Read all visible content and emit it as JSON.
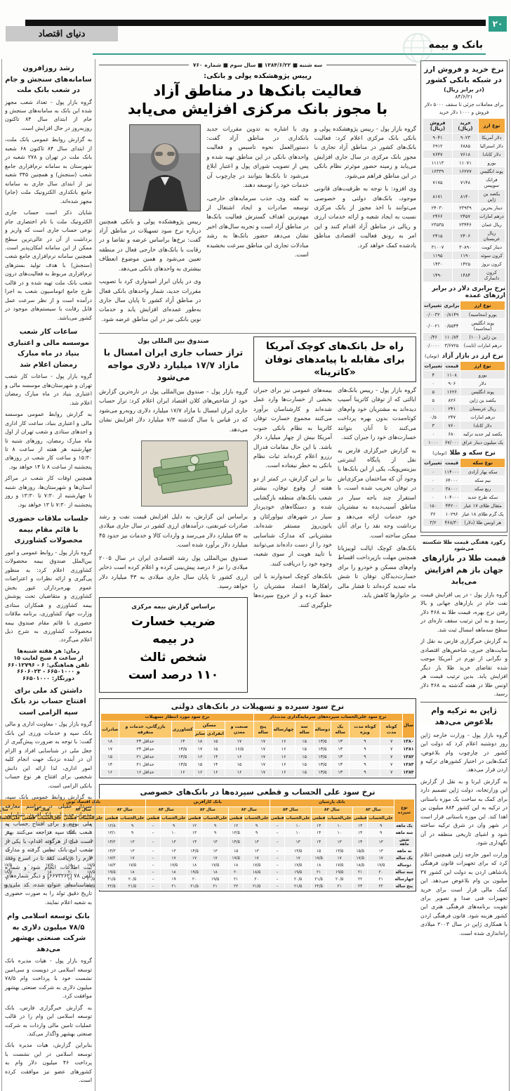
{
  "page": {
    "number": "۲۰",
    "section": "بانک و بیمه",
    "logo": "دنیای اقتصاد",
    "dateline": "سه شنبه ■ ۱۳۸۴/۶/۲۲ ■ سال سوم ■ شماره ۷۶۰"
  },
  "accent": {
    "teal": "#2f9e88",
    "orange": "#f3a83b",
    "light_orange": "#fbd389"
  },
  "lead_article": {
    "kicker": "رییس پژوهشکده پولی و بانکی:",
    "headline_line1": "فعالیت بانک‌ها در مناطق آزاد",
    "headline_line2": "با مجوز بانک مرکزی افزایش می‌یابد",
    "col1": [
      "گروه بازار پول - رییس پژوهشکده پولی و بانکی بانک مرکزی اعلام کرد: فعالیت بانک‌های کشور در مناطق آزاد تجاری با مجوز بانک مرکزی در سال جاری افزایش می‌یابد و زمینه حضور موثرتر نظام بانکی در این مناطق فراهم می‌شود.",
      "وی افزود: با توجه به ظرفیت‌های قانونی موجود، بانک‌های دولتی و خصوصی می‌توانند با اخذ مجوز از بانک مرکزی نسبت به ایجاد شعبه و ارائه خدمات ارزی و ریالی در مناطق آزاد اقدام کنند و این امر به رونق فعالیت اقتصادی مناطق یادشده کمک خواهد کرد."
    ],
    "col2": [
      "وی با اشاره به تدوین مقررات جدید بانکداری در مناطق آزاد گفت: دستورالعمل نحوه تاسیس و فعالیت واحدهای بانکی در این مناطق تهیه شده و پس از تصویب شورای پول و اعتبار ابلاغ می‌شود تا بانک‌ها بتوانند در چارچوب آن خدمات خود را توسعه دهند.",
      "به گفته وی، جذب سرمایه‌های خارجی، توسعه صادرات و ایجاد اشتغال از مهم‌ترین اهداف گسترش فعالیت بانک‌ها در مناطق آزاد است و تجربه سال‌های اخیر نشان می‌دهد حضور بانک‌ها به رشد مبادلات تجاری این مناطق سرعت بخشیده است."
    ],
    "col3": [
      "رییس پژوهشکده پولی و بانکی همچنین درباره نرخ سود تسهیلات در مناطق آزاد گفت: نرخ‌ها براساس عرضه و تقاضا و در رقابت با بانک‌های خارجی فعال در منطقه تعیین می‌شود و همین موضوع انعطاف بیشتری به واحدهای بانکی می‌دهد.",
      "وی در پایان ابراز امیدواری کرد با تصویب مقررات جدید، شمار واحدهای بانکی فعال در مناطق آزاد کشور تا پایان سال جاری به‌طور عمده‌ای افزایش یابد و خدمات نوین بانکی نیز در این مناطق عرضه شود."
    ]
  },
  "currency_box": {
    "title": "نرخ خرید و فروش ارز در شبکه بانکی کشور",
    "subtitle": "(در برابر ریال)",
    "date": "۸۴/۶/۲۱",
    "note": "برای معاملات جزئی تا سقف ۵۰۰۰ دلار فروش و ۱۰۰۰ دلار خرید",
    "bank_table": {
      "headers": [
        "نوع ارز",
        "خرید (ریال)",
        "فروش (ریال)"
      ],
      "rows": [
        [
          "دلار آمریکا",
          "۹۰۲۳",
          "۹۰۴۱"
        ],
        [
          "دلار استرالیا",
          "۶۸۸۵",
          "۶۹۱۲"
        ],
        [
          "دلار کانادا",
          "۷۶۱۸",
          "۷۶۴۷"
        ],
        [
          "یورو",
          "۱۱۰۷۱",
          "۱۱۱۱۳"
        ],
        [
          "پوند انگلیس",
          "۱۶۲۷۷",
          "۱۶۳۳۹"
        ],
        [
          "فرانک سوییس",
          "۷۱۴۸",
          "۷۱۷۵"
        ],
        [
          "یکصد ین ژاپن",
          "۸۱۴۰",
          "۸۱۷۱"
        ],
        [
          "دینار بحرین",
          "۲۳۹۳۹",
          "۲۴۰۳۰"
        ],
        [
          "درهم امارات",
          "۲۴۵۷",
          "۲۴۶۶"
        ],
        [
          "ریال عمان",
          "۲۳۴۴۶",
          "۲۳۵۳۵"
        ],
        [
          "ریال عربستان",
          "۲۴۰۶",
          "۲۴۱۵"
        ],
        [
          "دینار کویت",
          "۳۰۸۹۰",
          "۳۱۰۰۷"
        ],
        [
          "کرون سوئد",
          "۱۱۹۰",
          "۱۱۹۵"
        ],
        [
          "کرون نروژ",
          "۱۴۲۵",
          "۱۴۳۰"
        ],
        [
          "کرون دانمارک",
          "۱۴۸۴",
          "۱۴۹۰"
        ]
      ]
    },
    "parity_table": {
      "title": "نرخ برابری دلار در برابر ارزهای عمده",
      "headers": [
        "نوع ارز",
        "برابری",
        "تغییرات"
      ],
      "rows": [
        [
          "یورو (محاسبه)",
          "۰/۸۱۴۹",
          "۰/۰۰۳۲"
        ],
        [
          "پوند انگلیس (محاسبه)",
          "۰/۵۵۴۴",
          "۰/۰۰۲۱"
        ],
        [
          "ین ژاپن (۱۰۰)",
          "۱۱۰/۸۴",
          "۰/۴۶"
        ],
        [
          "درهم امارات (ثابت)",
          "۳/۶۷۲۵",
          "۰/۰۰۰۰"
        ]
      ]
    },
    "free_market_table": {
      "title": "نرخ ارز در بازار آزاد",
      "unit": "(تومان)",
      "headers": [
        "نوع ارز",
        "قیمت",
        "تغییرات"
      ],
      "rows": [
        [
          "یورو",
          "۱۱۰۸",
          "۴"
        ],
        [
          "دلار",
          "۹۰۶",
          "۰"
        ],
        [
          "پوند انگلیس",
          "۱۶۲۶",
          "۵"
        ],
        [
          "یکصد ین ژاپن",
          "۸۲۶",
          "۵"
        ],
        [
          "ریال عربستان",
          "۲۴۱",
          "۰"
        ],
        [
          "درهم امارات",
          "۲۴۷",
          "۰/۵"
        ],
        [
          "دلار کانادا",
          "۷۶۰",
          "۳"
        ],
        [
          "یکصد لیر جدید ترکیه",
          "۶۸۰",
          "۰"
        ],
        [
          "یک میلیون دینار عراق",
          "۶۷/۰۰۰",
          "۱۰۰۰"
        ]
      ]
    },
    "gold_table": {
      "title": "نرخ سکه و طلا",
      "unit": "(تومان)",
      "headers": [
        "نوع سکه",
        "قیمت",
        "تغییرات"
      ],
      "rows": [
        [
          "سکه بهار آزادی",
          "۱۱۴۰۰۰",
          "۰"
        ],
        [
          "نیم سکه",
          "۶۴۰۰۰",
          "۰"
        ],
        [
          "ربع سکه",
          "۳۸۰۰۰",
          "۰"
        ],
        [
          "سکه طرح جدید",
          "۱۰۴۰۰۰",
          "۰"
        ],
        [
          "مثقال طلای ۱۷ عیار",
          "۴۴۲۰۰",
          "۱۵۰"
        ],
        [
          "یک گرم طلای ۱۸ عیار",
          "۱۰۲۹۶",
          "۳۶"
        ],
        [
          "هر اونس طلا (دلار)",
          "۴۶۸/۳۰",
          "۳/۲"
        ]
      ]
    }
  },
  "gold_article": {
    "kicker": "رکورد هفتگی قیمت طلا شکسته می‌شود",
    "headline": "قیمت طلا در بازارهای جهان باز هم افزایش می‌یابد",
    "body": [
      "گروه بازار پول - در پی افزایش قیمت نفت خام در بازارهای جهانی و بالا رفتن نرخ بهره، قیمت طلا به ۴۶۸ دلار رسید و به این ترتیب سقف تازه‌ای در سطح سه‌ماهه امسال ثبت شد.",
      "به گزارش خبرگزاری فارس به نقل از سایت‌های خبری، شاخص‌های اقتصادی و نگرانی از تورم در آمریکا موجب شده تقاضای خرید طلا بار دیگر افزایش یابد. بدین ترتیب قیمت هر اونس طلا در هفته گذشته به ۴۶۸ دلار رسید."
    ]
  },
  "japan_article": {
    "headline": "ژاپن به ترکیه وام بلاعوض می‌دهد",
    "body": [
      "گروه بازار پول - وزارت خارجه ژاپن روز دوشنبه اعلام کرد که دولت این کشور در چارچوب وام بلاعوض، کمک‌هایی در اختیار کشورهای ترکیه و اردن قرار می‌دهد.",
      "به گزارش ایرنا و به نقل از گزارش این وزارتخانه، دولت ژاپن تصمیم دارد برای کمک به ساخت یک موزه باستانی در ترکیه به این کشور ۸۸۴ میلیون ین اهدا کند. این موزه باستانی قرار است در شهر وان در شرق ترکیه ساخته شود و اشیای تاریخی منطقه در آن نگهداری شود.",
      "وزارت امور خارجه ژاپن همچنین اعلام کرد که برای تجهیزات قانون فرهنگی پادشاهی اردن به دولت این کشور ۳۷ میلیون ین وام بلاعوض می‌دهد. این کمک مالی قرار است برای خرید تجهیزات فنی صدا و تصویر برای تقویت برنامه‌های فرهنگی هنری این کشور هزینه شود. قانون فرهنگی اردن با همکاری ژاپن در سال ۲۰۰۳ میلادی راه‌اندازی شده است."
    ]
  },
  "left_column": {
    "items": [
      {
        "headline": "رشد روزافزون سامانه‌های سنجش و جام در شعب بانک ملت",
        "body": [
          "گروه بازار پول - تعداد شعب مجهز شده این بانک به سامانه‌های سنجش و جام از ابتدای سال ۸۴ تاکنون روزبه‌روز در حال افزایش است.",
          "به گزارش روابط عمومی بانک ملت، از ابتدای سال ۸۴ تاکنون ۶۸ شعبه بانک ملت در تهران و ۲۷۸ شعبه در شهرستان به سامانه نرم‌افزاری جامع شعب (سنجش) و همچنین ۳۴۵ شعبه نیز از ابتدای سال جاری به سامانه جامع بانکداری الکترونیک ملت (جام) مجهز شده‌اند.",
          "شایان ذکر است حساب جاری الکترونیک ملت با نام اختصاری جام نوعی حساب جاری است که واریز و برداشت از آن در عالی‌ترین سطح ممکن از این سامانه امکان‌پذیر است. همچنین سامانه نرم‌افزاری جامع شعب (سنجش) با هدف تولید بسترهای نرم‌افزاری مربوط به فعالیت‌های درون شعب بانک ملت تهیه شده و در قالب طرح جامع اتوماسیون شعب به اجرا درآمده است و از نظر سرعت عمل قابل رقابت با سیستم‌های موجود در کشور می‌باشد."
        ]
      },
      {
        "headline": "ساعات کار شعب موسسه مالی و اعتباری بنیاد در ماه مبارک رمضان اعلام شد",
        "body": [
          "گروه بازار پول - ساعات کار شعب تهران و شهرستان‌های موسسه مالی و اعتباری بنیاد در ماه مبارک رمضان اعلام شد.",
          "به گزارش روابط عمومی موسسه مالی و اعتباری بنیاد، ساعت کار اداری و احدهای ستادی و شعب تهران از اول ماه مبارک رمضان، روزهای شنبه تا چهارشنبه هر هفته از ساعت ۸ تا ۱۵:۳۰ و ساعت کار شعب در روزهای پنجشنبه از ساعت ۸ تا ۱۴ خواهد بود.",
          "همچنین اوقات کار شعب در مراکز استان‌ها و شهرستان‌ها، روزهای شنبه تا چهارشنبه از ۷:۳۰ تا ۱۳:۳۰ و روز پنجشنبه از ۷:۳۰ تا ۱۳ خواهد بود."
        ]
      },
      {
        "headline": "جلسات ملاقات حضوری با قائم مقام بیمه محصولات کشاورزی",
        "body": [
          "گروه بازار پول - روابط عمومی و امور بین‌الملل صندوق بیمه محصولات کشاورزی اعلام کرد: به منظور پی‌گیری و ارائه نظرات و اعتراضات عموم بهره‌برداران غیور بخش کشاورزی و متقاضیان تحت پوشش بیمه کشاورزی و همکاران ستادی وزارت جهاد کشاورزی، برنامه ملاقات حضوری با قائم مقام صندوق بیمه محصولات کشاورزی به شرح ذیل اعلام می‌گردد."
        ],
        "extra": [
          "زمان: هر هفته شنبه‌ها",
          "از ساعت ۸ صبح لغایت ۱۵",
          "تلفن هماهنگی: ۶ - ۶۶۰۱۲۷۹۶ و ۶۶۵۰۱۰۰۰ - ۶۶۰۶۰۲۳",
          "دورنگار: ۶۶۵۰۱۰۰۰"
        ]
      },
      {
        "headline": "داشتن کد ملی برای افتتاح حساب نزد بانک سپه الزامی است",
        "body": [
          "گروه بازار پول - معاونت اداری و مالی بانک سپه و خدمات ورزی این بانک گفت: با توجه به ضرورت پیش‌گیری از جعل ملی در شناسایی افراد و الزام آن در آینده نزدیک جهت انجام کلیه امور اداری، لذا ارائه این دانش شخصی برای افتتاح هر نوع حساب بانکی الزامی است.",
          "به گزارش روابط عمومی بانک سپه، سردار عقیلی در مراسم معارفه مدیران جدید این بانک افزود: شناسایی ملی بوده و برای افتتاح حساب به شعب بانک سپه مراجعه می‌کنند بهتر است قبل از هرگونه اقدام، با یکی از شعب این بانک تماس گرفته و مدارک لازم را دریافت کنند تا در اسرع وقت ثبت اطلاعات انجام شود و شماره تلفن ۷۸ (۶۶۷۳۲۶۲) و دیگر شماره‌های شناسنامه‌ای عنوان شده، کد ملی و تاریخ دقیق تولد را به صورت حضوری به شعبه اعلام نمایند."
        ]
      },
      {
        "headline": "بانک توسعه اسلامی وام ۷۸/۵ میلیون دلاری به شرکت صنعتی بهشهر می‌دهد",
        "body": [
          "گروه بازار پول - هیات مدیره بانک توسعه اسلامی در دویست و سی‌امین نشست خود با پرداخت وام ۷۸/۵ میلیون دلاری به شرکت صنعتی بهشهر موافقت کرد.",
          "به گزارش خبرگزاری فارس، بانک توسعه اسلامی این وام را در قالب عملیات تامین مالی واردات به شرکت صنعتی بهشهر واگذار می‌کند.",
          "بنابراین گزارش، هیات مدیره بانک توسعه اسلامی در این نشست با پرداخت ۴۶ میلیون دلار وام به کشورهای عضو نیز موافقت کرده است."
        ]
      }
    ]
  },
  "katrina_article": {
    "headline": "راه حل بانک‌های کوچک آمریکا برای مقابله با پیامدهای توفان «کاترینا»",
    "col1": [
      "گروه بازار پول - رییس بانک‌های ایالتی که از توفان کاترینا آسیب دیده‌اند به مشتریان خود وام‌های کوتاه‌مدت بدون بهره پرداخت می‌کنند تا آنان بتوانند خسارت‌های خود را جبران کنند.",
      "به گزارش خبرگزاری فارس به نقل از پایگاه اینترنتی بیزینس‌ویک، یکی از این بانک‌ها با وجود آن که ساختمان مرکزی‌اش در توفان تخریب شده است، با استقرار چند باجه سیار در مناطق آسیب‌دیده به مشتریان خود خدمات ارائه می‌دهد و برداشت وجه نقد را برای آنان ممکن ساخته است.",
      "بانک‌های کوچک ایالت لوییزیانا همچنین مهلت بازپرداخت اقساط وام‌های مسکن و خودرو را برای خسارت‌دیدگان توفان تا شش ماه تمدید کرده‌اند تا فشار مالی بر خانوارها کاهش یابد."
    ],
    "col2": [
      "بیمه‌های عمومی نیز برای جبران بخشی از خسارت‌ها وارد عمل شده‌اند و کارشناسان برآورد می‌کنند مجموع خسارت توفان کاترینا به نظام بانکی جنوب آمریکا بیش از چهار میلیارد دلار باشد. با این حال مقامات فدرال رزرو اعلام کرده‌اند ثبات نظام بانکی به خطر نیفتاده است.",
      "بنا بر این گزارش، در کمتر از دو هفته از وقوع توفان، بیشتر شعب بانک‌های منطقه بازگشایی شده و دستگاه‌های خودپرداز سیار در شهرهای نیواورلئان و باتون‌روژ مستقر شده‌اند. مشتریانی که مدارک شناسایی خود را از دست داده‌اند می‌توانند با تایید هویت از سوی شعبه، وجوه خود را دریافت کنند.",
      "بانک‌های کوچک امیدوارند با این راهکارها اعتماد مشتریان را حفظ کرده و از خروج سپرده‌ها جلوگیری کنند."
    ]
  },
  "imf_article": {
    "kicker": "صندوق بین المللی پول",
    "headline": "تراز حساب جاری ایران امسال با مازاد ۱۷/۷ میلیارد دلاری مواجه می‌شود",
    "body1": [
      "گروه بازار پول - صندوق بین‌المللی پول در تازه‌ترین گزارش خود از شاخص‌های کلان اقتصاد ایران اعلام کرد: تراز حساب جاری ایران امسال با مازاد ۱۷/۷ میلیارد دلاری روبه‌رو می‌شود که در قیاس با سال گذشته ۷/۳ میلیارد دلار افزایش نشان می‌دهد."
    ],
    "body2": [
      "براساس این گزارش، به دلیل افزایش قیمت نفت و رشد صادرات غیرنفتی، درآمدهای ارزی کشور در سال جاری میلادی به ۵۴ میلیارد دلار می‌رسد و واردات کالا و خدمات نیز حدود ۴۵ میلیارد دلار برآورد شده است.",
      "صندوق بین‌المللی پول رشد اقتصادی ایران در سال ۲۰۰۵ میلادی را نیز ۶ درصد پیش‌بینی کرده و اعلام کرده است ذخایر ارزی کشور تا پایان سال جاری میلادی به ۴۳ میلیارد دلار خواهد رسید."
    ]
  },
  "insurance_box": {
    "kicker": "براساس گزارش بیمه مرکزی",
    "headline_lines": [
      "ضریب خسارت",
      "در بیمه",
      "شخص ثالث",
      "۱۱۰ درصد است"
    ]
  },
  "state_banks_table": {
    "title": "نرخ سود سپرده و تسهیلات در بانک‌های دولتی",
    "year_label": "سال",
    "deposit_group": "نرخ سود علی‌الحساب سپرده‌های سرمایه‌گذاری مدت‌دار",
    "loan_group": "نرخ سود مورد انتظار تسهیلات",
    "deposit_cols": [
      "کوتاه مدت",
      "کوتاه مدت ویژه",
      "یک ساله",
      "دوساله",
      "سه ساله",
      "چهارساله",
      "پنج ساله"
    ],
    "loan_cols_before_maskan": [
      "صنعت و معدن"
    ],
    "maskan_group": "مسکن",
    "maskan_subcols": [
      "انفرادی",
      "سایر"
    ],
    "loan_cols_after_maskan": [
      "کشاورزی",
      "بازرگانی، خدمات و متفرقه",
      "صادرات"
    ],
    "rows": [
      [
        "۱۳۸۰",
        "۷",
        "۹",
        "۱۳",
        "۱۳/۵",
        "۱۵",
        "۱۶",
        "۱۷",
        "۱۷",
        "۱۵",
        "۱۸",
        "۱۴",
        "حداقل ۲۳",
        "۱۸"
      ],
      [
        "۱۳۸۱",
        "۷",
        "۹",
        "۱۳",
        "۱۳/۵",
        "۱۵",
        "۱۶",
        "۱۷",
        "۱۶/۵",
        "۱۵",
        "۱۷",
        "۱۳/۵",
        "حداقل ۲۳",
        "۱۷"
      ],
      [
        "۱۳۸۲",
        "۷",
        "۹",
        "۱۳",
        "۱۳/۵",
        "۱۵",
        "۱۶",
        "۱۷",
        "۱۶",
        "۱۴",
        "۱۶",
        "۱۳/۵",
        "حداقل ۲۱",
        "۱۵"
      ],
      [
        "۱۳۸۳",
        "۷",
        "۹",
        "۱۳",
        "۱۳/۵",
        "۱۵",
        "۱۶",
        "۱۷",
        "۱۵",
        "۱۴",
        "۱۵",
        "۱۳/۵",
        "حداقل ۲۱",
        "۱۴"
      ],
      [
        "۱۳۸۴",
        "۷",
        "۹",
        "۱۳",
        "۱۳/۵",
        "۱۵",
        "۱۶",
        "۱۷",
        "۱۶",
        "۱۶",
        "۱۶",
        "۱۶",
        "حداقل ۱۶",
        "۱۶"
      ]
    ]
  },
  "private_banks_table": {
    "title": "نرخ سود علی الحساب و قطعی سپرده‌ها در بانک‌های خصوصی",
    "row_label": "نوع سپرده",
    "banks": [
      "بانک پارسیان",
      "بانک کارآفرین",
      "بانک اقتصاد نوین",
      "بانک سامان"
    ],
    "years": [
      "سال ۸۲",
      "سال ۸۳",
      "سال ۸۴"
    ],
    "subcols": [
      "علی‌الحساب",
      "قطعی"
    ],
    "rows": [
      [
        "یک ماهه",
        "۹",
        "۱۳",
        "۱۰",
        "۱۳",
        "۱۰",
        "–",
        "۹",
        "۱۲",
        "۹",
        "۱۲",
        "۹",
        "–",
        "۹",
        "۱۲/۸",
        "۹",
        "۱۲/۵",
        "۱۰",
        "–",
        "۹",
        "۱۲",
        "۹",
        "۱۲",
        "۹",
        "–"
      ],
      [
        "سه ماهه",
        "۹",
        "۱۴",
        "۱۰",
        "۱۴",
        "۱۰",
        "–",
        "۹",
        "۱۳/۵",
        "۹",
        "۱۳",
        "۱۰",
        "–",
        "۹",
        "۱۳/۱",
        "۹",
        "۱۳/۵",
        "۱۲",
        "–",
        "۹",
        "۱۳",
        "۱۰/۵",
        "۱۳",
        "۱۰",
        "–"
      ],
      [
        "شش ماهه",
        "۱۳",
        "۱۴",
        "۱۳",
        "۱۴",
        "۱۳",
        "–",
        "۱۳",
        "۱۴/۵",
        "۱۳",
        "۱۴",
        "۱۳",
        "–",
        "۱۳",
        "۱۴/۲",
        "۱۳",
        "۱۴",
        "۱۳",
        "–",
        "۱۳",
        "۱۴",
        "۱۳",
        "۱۳/۵",
        "۱۳",
        "–"
      ],
      [
        "نه ماهه",
        "۱۳",
        "۱۵/۵",
        "۱۳/۵",
        "۱۵",
        "۱۳/۵",
        "–",
        "۱۳",
        "۱۵",
        "۱۳",
        "۱۴/۵",
        "۱۳",
        "–",
        "۱۳",
        "۱۴/۳",
        "۱۳",
        "۱۴",
        "۱۳",
        "–",
        "۱۳",
        "۱۵",
        "۱۳/۵",
        "۱۴",
        "۱۳",
        "–"
      ],
      [
        "یک ساله",
        "۱۷",
        "۱۷/۵",
        "۱۷",
        "۱۷/۵",
        "۱۷",
        "–",
        "۱۷",
        "۱۷/۵",
        "۱۷",
        "۱۷",
        "۱۷",
        "–",
        "۱۷",
        "۱۷/۲",
        "۱۷",
        "۱۷",
        "۱۷",
        "–",
        "۱۷",
        "۱۷/۵",
        "۱۷",
        "۱۷",
        "۱۷",
        "–"
      ],
      [
        "دوساله",
        "۱۷/۵",
        "۱۸/۵",
        "۱۷/۵",
        "۱۸",
        "۱۷/۵",
        "–",
        "۱۷/۵",
        "۱۸",
        "۱۷/۵",
        "۱۸",
        "۱۷/۵",
        "–",
        "۱۷/۵",
        "۱۸/۳",
        "۱۷/۵",
        "۱۸",
        "۱۷/۵",
        "–",
        "۱۷/۵",
        "۱۸",
        "۱۷/۵",
        "۱۸",
        "۱۷/۵",
        "–"
      ],
      [
        "سه ساله",
        "۲۰",
        "۲۱",
        "۱۹/۵",
        "۲۱",
        "۱۹/۵",
        "–",
        "۱۸/۵",
        "۲۰",
        "۱۸",
        "۱۹/۵",
        "۱۸",
        "–",
        "۱۸",
        "۱۹/۵",
        "۱۸/۵",
        "۲۰",
        "۱۸",
        "–",
        "۱۸/۵",
        "۲۰/۵",
        "۱۸",
        "۲۰",
        "۱۸",
        "–"
      ],
      [
        "چهارساله",
        "۲۱",
        "۲۲",
        "۲۰/۵",
        "۲۱/۵",
        "۲۰/۵",
        "–",
        "۲۰",
        "۲۱",
        "۱۹/۵",
        "۲۰",
        "۱۹",
        "–",
        "۲۰/۵",
        "۲۱/۵",
        "۲۰/۵",
        "۲۱",
        "۲۰",
        "–",
        "۲۰",
        "۲۱",
        "۲۰/۵",
        "۲۰/۵",
        "۲۰",
        "–"
      ],
      [
        "پنج ساله",
        "۲۲",
        "۲۳",
        "۲۱",
        "۲۲/۵",
        "۲۱/۵",
        "–",
        "۲۱/۵",
        "۲۲",
        "۲۱",
        "۲۱/۵",
        "۲۱",
        "–",
        "۲۱/۵",
        "۲۲/۵",
        "۲۱/۵",
        "۲۲",
        "۲۱",
        "–",
        "۲۱/۵",
        "۲۲",
        "۲۱",
        "۲۱/۵",
        "۲۱",
        "–"
      ]
    ]
  }
}
